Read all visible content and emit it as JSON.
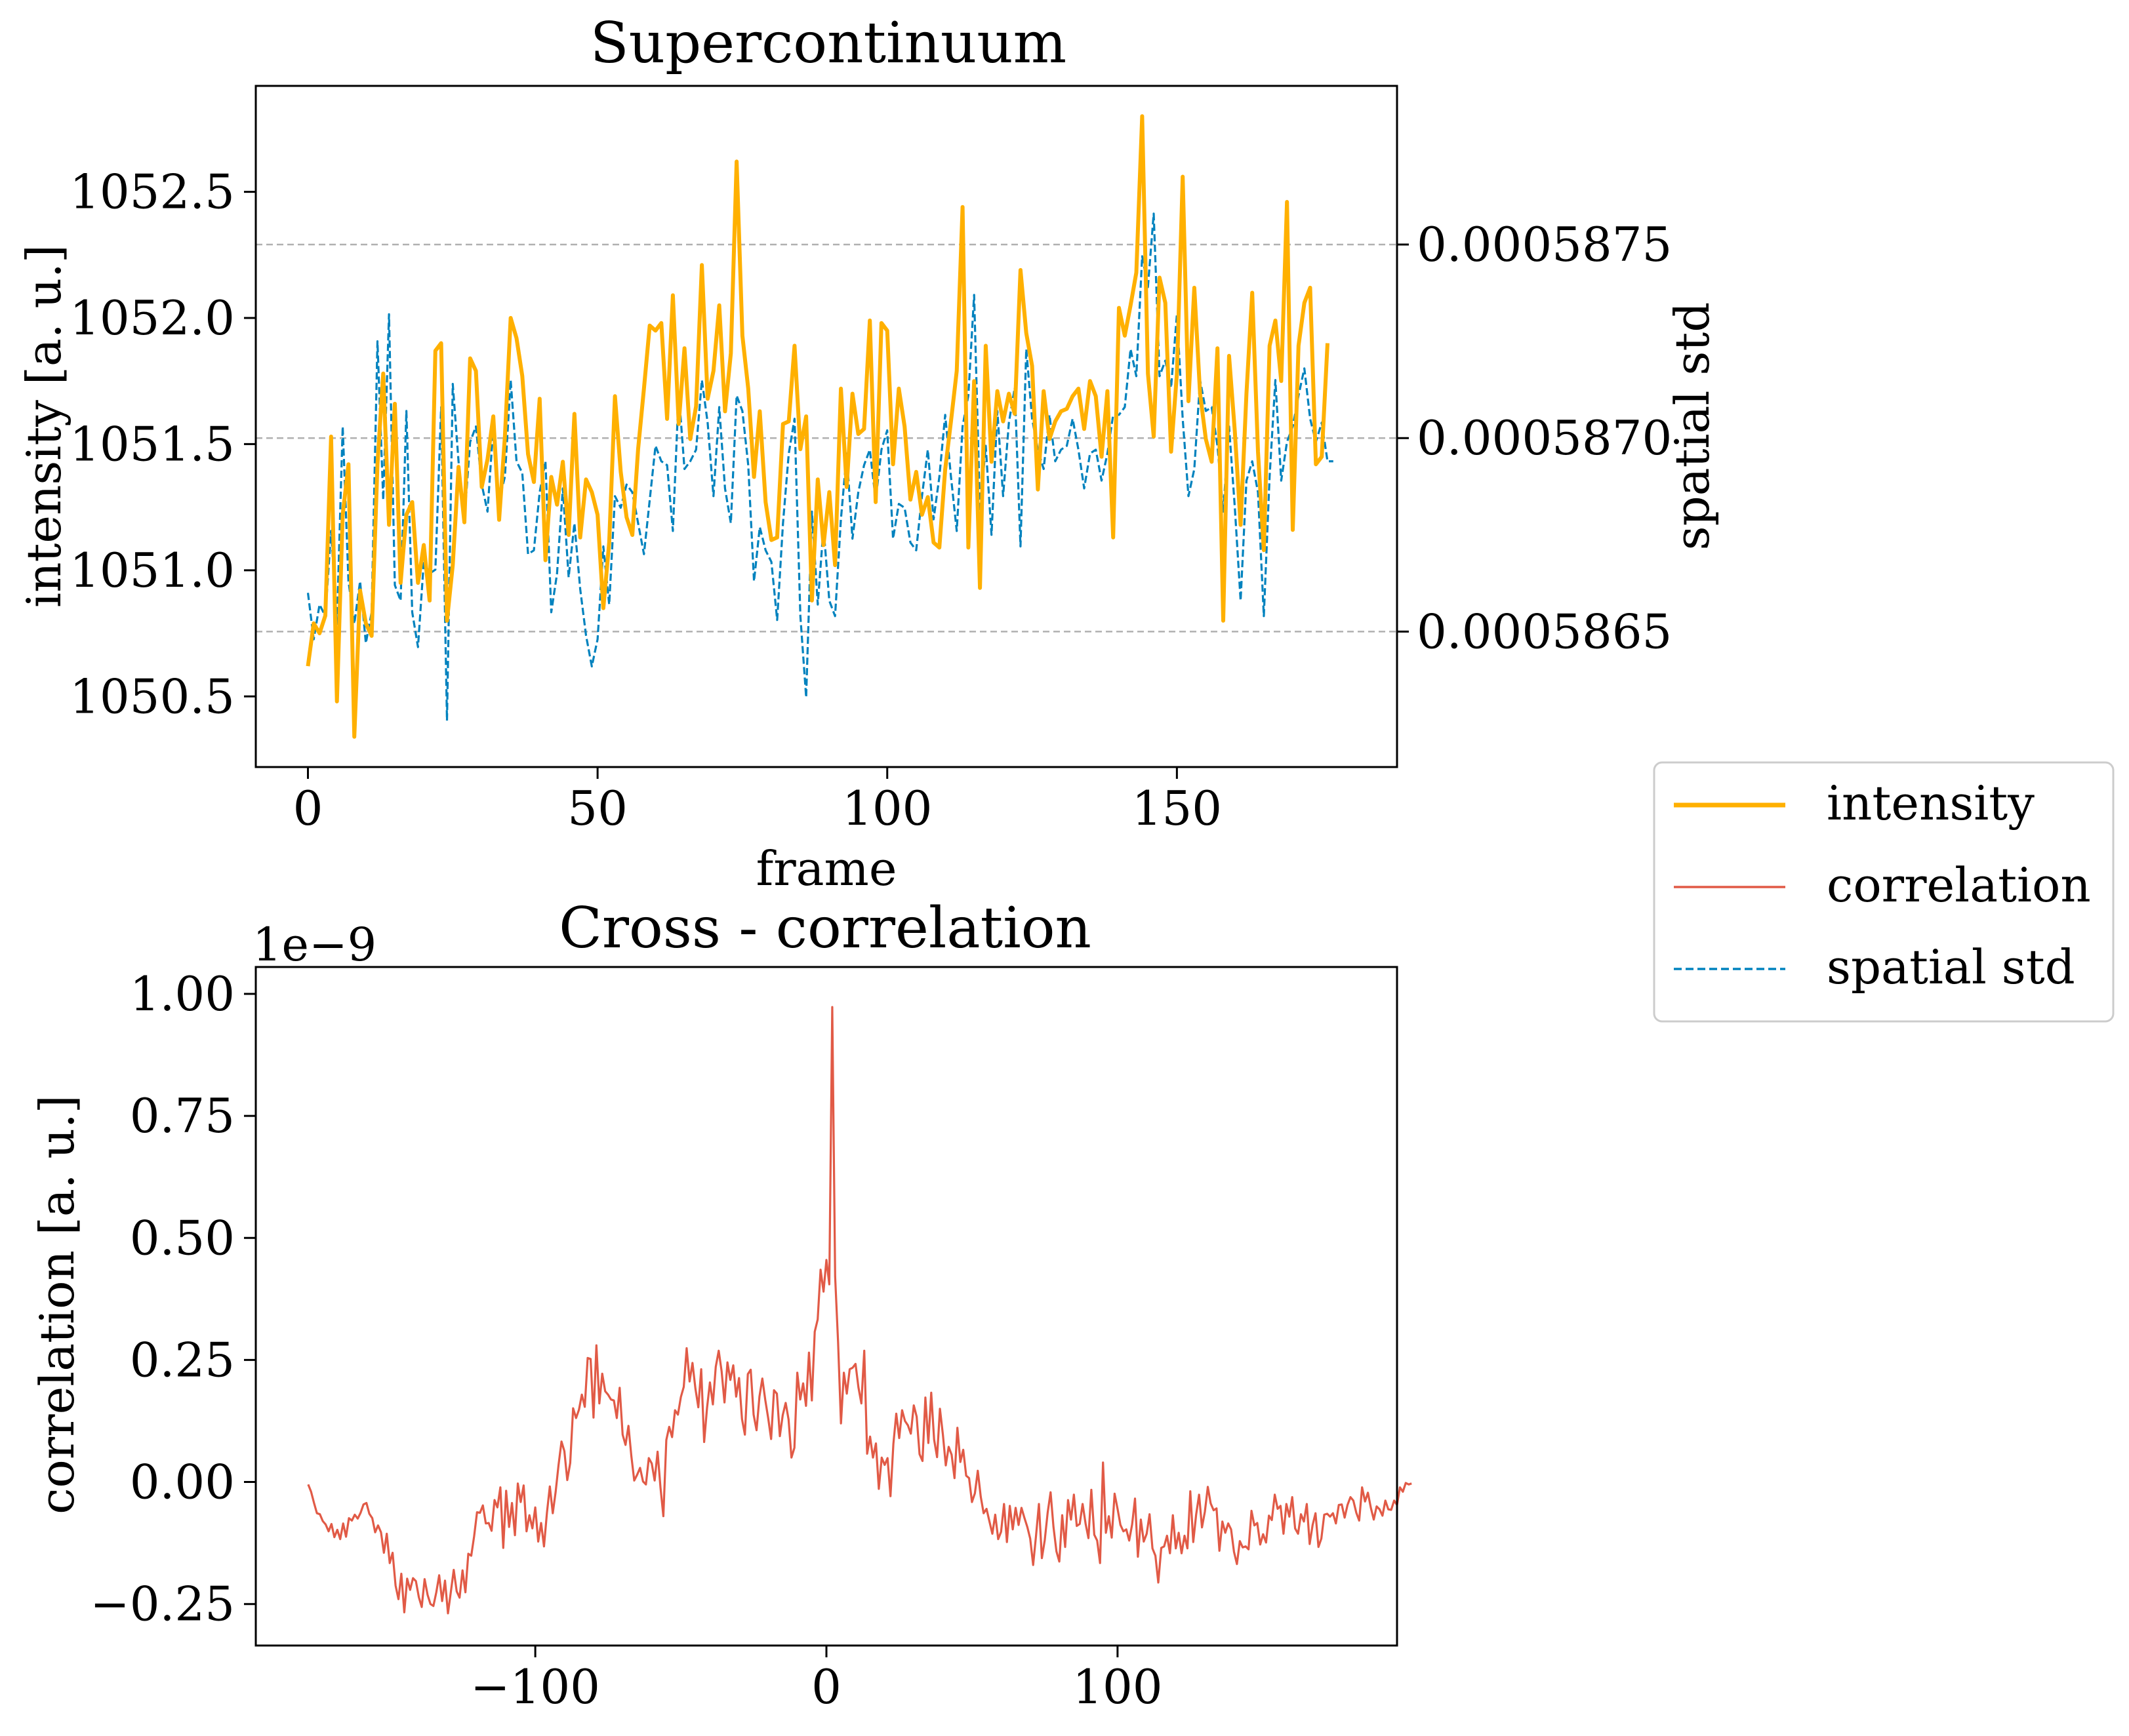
{
  "chart_data": [
    {
      "type": "line",
      "title": "Supercontinuum",
      "xlabel": "frame",
      "ylabel": "intensity [a. u.]",
      "y2label": "spatial std",
      "xlim": [
        -9,
        188
      ],
      "ylim": [
        1050.22,
        1052.92
      ],
      "y2lim": [
        0.00058615,
        0.00058791
      ],
      "xticks": [
        0,
        50,
        100,
        150
      ],
      "yticks": [
        1050.5,
        1051.0,
        1051.5,
        1052.0,
        1052.5
      ],
      "ytick_labels": [
        "1050.5",
        "1051.0",
        "1051.5",
        "1052.0",
        "1052.5"
      ],
      "y2ticks": [
        0.0005865,
        0.000587,
        0.0005875
      ],
      "y2tick_labels": [
        "0.0005865",
        "0.0005870",
        "0.0005875"
      ],
      "grid": "horizontal dashed lines on right axis ticks",
      "series": [
        {
          "name": "intensity",
          "color": "#FFB000",
          "style": "solid",
          "axis": "left",
          "values": [
            1050.62,
            1050.79,
            1050.75,
            1050.82,
            1051.53,
            1050.48,
            1051.22,
            1051.42,
            1050.34,
            1050.92,
            1050.79,
            1050.74,
            1051.42,
            1051.78,
            1051.18,
            1051.66,
            1050.95,
            1051.22,
            1051.27,
            1050.95,
            1051.1,
            1050.88,
            1051.87,
            1051.9,
            1050.8,
            1051.02,
            1051.41,
            1051.19,
            1051.84,
            1051.79,
            1051.33,
            1051.44,
            1051.61,
            1051.2,
            1051.53,
            1052.0,
            1051.92,
            1051.77,
            1051.46,
            1051.35,
            1051.68,
            1051.04,
            1051.37,
            1051.26,
            1051.43,
            1051.14,
            1051.62,
            1051.13,
            1051.36,
            1051.31,
            1051.22,
            1050.85,
            1051.11,
            1051.69,
            1051.39,
            1051.21,
            1051.14,
            1051.48,
            1051.72,
            1051.97,
            1051.95,
            1051.98,
            1051.6,
            1052.09,
            1051.58,
            1051.88,
            1051.52,
            1051.65,
            1052.21,
            1051.68,
            1051.79,
            1052.05,
            1051.63,
            1051.86,
            1052.62,
            1051.93,
            1051.72,
            1051.37,
            1051.63,
            1051.27,
            1051.12,
            1051.13,
            1051.58,
            1051.59,
            1051.89,
            1051.48,
            1051.61,
            1050.88,
            1051.36,
            1051.1,
            1051.31,
            1051.02,
            1051.72,
            1051.33,
            1051.7,
            1051.54,
            1051.56,
            1051.99,
            1051.27,
            1051.98,
            1051.95,
            1051.42,
            1051.72,
            1051.57,
            1051.28,
            1051.39,
            1051.22,
            1051.29,
            1051.11,
            1051.09,
            1051.4,
            1051.59,
            1051.79,
            1052.44,
            1051.09,
            1051.75,
            1050.93,
            1051.89,
            1051.43,
            1051.71,
            1051.59,
            1051.7,
            1051.62,
            1052.19,
            1051.94,
            1051.81,
            1051.32,
            1051.71,
            1051.52,
            1051.59,
            1051.63,
            1051.64,
            1051.69,
            1051.72,
            1051.56,
            1051.75,
            1051.69,
            1051.45,
            1051.71,
            1051.13,
            1052.04,
            1051.93,
            1052.05,
            1052.18,
            1052.8,
            1051.78,
            1051.53,
            1052.16,
            1052.06,
            1051.47,
            1051.78,
            1052.56,
            1051.67,
            1052.12,
            1051.7,
            1051.52,
            1051.43,
            1051.88,
            1050.8,
            1051.85,
            1051.55,
            1051.18,
            1051.7,
            1052.1,
            1051.47,
            1051.08,
            1051.89,
            1051.99,
            1051.75,
            1052.46,
            1051.16,
            1051.89,
            1052.06,
            1052.12,
            1051.42,
            1051.45,
            1051.9
          ]
        },
        {
          "name": "spatial std",
          "color": "#0082BE",
          "style": "dashed",
          "axis": "right",
          "values": [
            0.0005866,
            0.00058648,
            0.00058657,
            0.00058654,
            0.00058676,
            0.00058652,
            0.00058703,
            0.00058663,
            0.00058652,
            0.00058663,
            0.00058647,
            0.00058655,
            0.00058725,
            0.00058684,
            0.00058732,
            0.00058662,
            0.00058658,
            0.00058707,
            0.00058655,
            0.00058646,
            0.00058668,
            0.00058665,
            0.00058666,
            0.00058708,
            0.00058627,
            0.00058714,
            0.00058694,
            0.00058679,
            0.00058699,
            0.00058703,
            0.00058688,
            0.00058681,
            0.00058703,
            0.00058684,
            0.0005869,
            0.00058715,
            0.00058694,
            0.00058691,
            0.0005867,
            0.00058671,
            0.00058686,
            0.00058694,
            0.00058655,
            0.00058665,
            0.00058687,
            0.00058664,
            0.00058678,
            0.00058661,
            0.00058649,
            0.00058641,
            0.00058648,
            0.00058672,
            0.00058657,
            0.00058685,
            0.00058682,
            0.00058688,
            0.00058686,
            0.00058678,
            0.0005867,
            0.00058684,
            0.00058698,
            0.00058694,
            0.00058693,
            0.00058676,
            0.00058712,
            0.00058692,
            0.00058694,
            0.00058697,
            0.00058715,
            0.00058704,
            0.00058685,
            0.00058708,
            0.00058687,
            0.00058678,
            0.00058711,
            0.00058707,
            0.00058693,
            0.00058663,
            0.00058677,
            0.00058671,
            0.00058668,
            0.00058653,
            0.00058678,
            0.00058696,
            0.00058705,
            0.00058654,
            0.00058633,
            0.00058681,
            0.00058657,
            0.00058677,
            0.00058658,
            0.00058654,
            0.00058679,
            0.00058696,
            0.00058674,
            0.00058686,
            0.00058693,
            0.00058697,
            0.00058684,
            0.00058697,
            0.00058702,
            0.00058674,
            0.00058683,
            0.00058682,
            0.00058673,
            0.00058671,
            0.00058685,
            0.00058697,
            0.00058679,
            0.0005869,
            0.00058706,
            0.0005869,
            0.00058676,
            0.00058703,
            0.00058711,
            0.00058737,
            0.00058681,
            0.00058698,
            0.00058675,
            0.00058707,
            0.00058685,
            0.00058704,
            0.00058713,
            0.00058672,
            0.00058723,
            0.00058705,
            0.00058697,
            0.00058692,
            0.00058706,
            0.00058694,
            0.00058697,
            0.00058698,
            0.00058705,
            0.00058697,
            0.00058687,
            0.00058696,
            0.00058697,
            0.00058689,
            0.00058696,
            0.00058706,
            0.00058706,
            0.00058708,
            0.00058723,
            0.00058716,
            0.00058747,
            0.00058739,
            0.00058758,
            0.00058716,
            0.0005872,
            0.00058713,
            0.00058732,
            0.00058705,
            0.00058685,
            0.00058692,
            0.00058715,
            0.00058707,
            0.00058708,
            0.00058698,
            0.00058681,
            0.00058703,
            0.00058682,
            0.00058658,
            0.00058689,
            0.00058694,
            0.00058686,
            0.00058654,
            0.0005869,
            0.00058715,
            0.00058689,
            0.00058699,
            0.00058703,
            0.00058711,
            0.00058718,
            0.00058705,
            0.00058699,
            0.00058704,
            0.00058694,
            0.00058694
          ]
        }
      ]
    },
    {
      "type": "line",
      "title": "Cross - correlation",
      "xlabel": "",
      "ylabel": "correlation [a. u.]",
      "offset_text": "1e−9",
      "xlim": [
        -196,
        196
      ],
      "ylim": [
        -0.335,
        1.055
      ],
      "xticks": [
        -100,
        0,
        100
      ],
      "xtick_labels": [
        "−100",
        "0",
        "100"
      ],
      "yticks": [
        -0.25,
        0.0,
        0.25,
        0.5,
        0.75,
        1.0
      ],
      "ytick_labels": [
        "−0.25",
        "0.00",
        "0.25",
        "0.50",
        "0.75",
        "1.00"
      ],
      "grid": false,
      "series": [
        {
          "name": "correlation",
          "color": "#E15A46",
          "style": "solid",
          "x_start": -178,
          "x_step": 1,
          "values": [
            -0.005,
            -0.02,
            -0.043,
            -0.064,
            -0.066,
            -0.08,
            -0.087,
            -0.101,
            -0.086,
            -0.113,
            -0.098,
            -0.117,
            -0.085,
            -0.112,
            -0.074,
            -0.079,
            -0.067,
            -0.075,
            -0.063,
            -0.046,
            -0.043,
            -0.065,
            -0.074,
            -0.103,
            -0.089,
            -0.103,
            -0.145,
            -0.106,
            -0.166,
            -0.145,
            -0.212,
            -0.24,
            -0.188,
            -0.267,
            -0.198,
            -0.221,
            -0.197,
            -0.203,
            -0.236,
            -0.256,
            -0.199,
            -0.231,
            -0.25,
            -0.254,
            -0.226,
            -0.191,
            -0.244,
            -0.202,
            -0.269,
            -0.225,
            -0.18,
            -0.224,
            -0.237,
            -0.181,
            -0.226,
            -0.147,
            -0.151,
            -0.111,
            -0.062,
            -0.063,
            -0.048,
            -0.085,
            -0.084,
            -0.1,
            -0.037,
            -0.052,
            -0.011,
            -0.135,
            -0.018,
            -0.092,
            -0.043,
            -0.109,
            -0.003,
            -0.041,
            -0.007,
            -0.101,
            -0.068,
            -0.095,
            -0.052,
            -0.122,
            -0.084,
            -0.132,
            -0.063,
            -0.009,
            -0.064,
            -0.02,
            0.035,
            0.083,
            0.063,
            0.004,
            0.039,
            0.151,
            0.131,
            0.148,
            0.179,
            0.154,
            0.254,
            0.252,
            0.132,
            0.28,
            0.161,
            0.222,
            0.186,
            0.179,
            0.169,
            0.167,
            0.131,
            0.193,
            0.097,
            0.076,
            0.115,
            0.053,
            0.003,
            0.015,
            0.029,
            0.001,
            -0.005,
            0.049,
            0.038,
            0.003,
            0.062,
            -0.011,
            -0.07,
            0.086,
            0.113,
            0.092,
            0.147,
            0.138,
            0.174,
            0.195,
            0.274,
            0.206,
            0.244,
            0.191,
            0.153,
            0.231,
            0.082,
            0.152,
            0.204,
            0.159,
            0.236,
            0.269,
            0.227,
            0.163,
            0.245,
            0.209,
            0.239,
            0.175,
            0.213,
            0.129,
            0.097,
            0.221,
            0.23,
            0.138,
            0.106,
            0.175,
            0.212,
            0.168,
            0.131,
            0.088,
            0.188,
            0.181,
            0.094,
            0.137,
            0.162,
            0.128,
            0.05,
            0.07,
            0.224,
            0.169,
            0.202,
            0.156,
            0.265,
            0.167,
            0.308,
            0.333,
            0.435,
            0.39,
            0.455,
            0.405,
            0.973,
            0.421,
            0.286,
            0.12,
            0.224,
            0.181,
            0.231,
            0.234,
            0.242,
            0.194,
            0.161,
            0.269,
            0.058,
            0.093,
            0.05,
            0.079,
            -0.014,
            0.05,
            0.035,
            0.049,
            -0.029,
            0.078,
            0.14,
            0.09,
            0.147,
            0.125,
            0.116,
            0.099,
            0.157,
            0.134,
            0.057,
            0.043,
            0.173,
            0.08,
            0.183,
            0.087,
            0.051,
            0.15,
            0.097,
            0.034,
            0.072,
            0.056,
            0.008,
            0.111,
            0.041,
            0.066,
            0.013,
            0.008,
            -0.041,
            -0.023,
            0.023,
            -0.03,
            -0.064,
            -0.055,
            -0.081,
            -0.106,
            -0.067,
            -0.117,
            -0.102,
            -0.045,
            -0.123,
            -0.049,
            -0.097,
            -0.053,
            -0.088,
            -0.053,
            -0.073,
            -0.092,
            -0.116,
            -0.17,
            -0.11,
            -0.045,
            -0.156,
            -0.119,
            -0.063,
            -0.021,
            -0.092,
            -0.142,
            -0.163,
            -0.068,
            -0.133,
            -0.037,
            -0.077,
            -0.026,
            -0.09,
            -0.086,
            -0.045,
            -0.085,
            -0.115,
            -0.016,
            -0.108,
            -0.12,
            -0.166,
            0.04,
            -0.104,
            -0.07,
            -0.114,
            -0.024,
            -0.055,
            -0.088,
            -0.101,
            -0.097,
            -0.12,
            -0.087,
            -0.034,
            -0.153,
            -0.077,
            -0.122,
            -0.106,
            -0.066,
            -0.136,
            -0.151,
            -0.206,
            -0.135,
            -0.132,
            -0.11,
            -0.146,
            -0.068,
            -0.136,
            -0.104,
            -0.146,
            -0.11,
            -0.136,
            -0.019,
            -0.123,
            -0.067,
            -0.026,
            -0.093,
            -0.061,
            -0.01,
            -0.044,
            -0.058,
            -0.054,
            -0.141,
            -0.081,
            -0.104,
            -0.085,
            -0.097,
            -0.143,
            -0.168,
            -0.121,
            -0.134,
            -0.132,
            -0.138,
            -0.059,
            -0.089,
            -0.084,
            -0.128,
            -0.107,
            -0.124,
            -0.069,
            -0.078,
            -0.026,
            -0.055,
            -0.049,
            -0.106,
            -0.045,
            -0.071,
            -0.031,
            -0.095,
            -0.106,
            -0.066,
            -0.081,
            -0.045,
            -0.127,
            -0.088,
            -0.064,
            -0.133,
            -0.116,
            -0.067,
            -0.065,
            -0.071,
            -0.064,
            -0.085,
            -0.047,
            -0.046,
            -0.073,
            -0.047,
            -0.031,
            -0.038,
            -0.063,
            -0.079,
            -0.011,
            -0.04,
            -0.022,
            -0.053,
            -0.077,
            -0.05,
            -0.056,
            -0.069,
            -0.038,
            -0.056,
            -0.057,
            -0.038,
            -0.047,
            -0.011,
            -0.02,
            -0.002,
            -0.005,
            -0.003
          ]
        }
      ]
    }
  ],
  "legend": {
    "placement": "right",
    "entries": [
      {
        "label": "intensity",
        "color": "#FFB000",
        "style": "solid"
      },
      {
        "label": "correlation",
        "color": "#E15A46",
        "style": "solid"
      },
      {
        "label": "spatial std",
        "color": "#0082BE",
        "style": "dashed"
      }
    ]
  }
}
